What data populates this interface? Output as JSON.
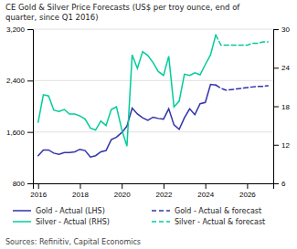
{
  "chart_data": {
    "type": "line",
    "title": "CE Gold & Silver Price Forecasts (US$ per troy ounce, end of\nquarter, since Q1 2016)",
    "annotations": [
      "Sources: Refinitiv, Capital Economics"
    ],
    "series": [
      {
        "name": "Gold - Actual (LHS)",
        "color": "#3333aa",
        "line_style": "solid",
        "axis": "y",
        "x": [
          2016.0,
          2016.25,
          2016.5,
          2016.75,
          2017.0,
          2017.25,
          2017.5,
          2017.75,
          2018.0,
          2018.25,
          2018.5,
          2018.75,
          2019.0,
          2019.25,
          2019.5,
          2019.75,
          2020.0,
          2020.25,
          2020.5,
          2020.75,
          2021.0,
          2021.25,
          2021.5,
          2021.75,
          2022.0,
          2022.25,
          2022.5,
          2022.75,
          2023.0,
          2023.25,
          2023.5,
          2023.75,
          2024.0,
          2024.25,
          2024.5
        ],
        "values": [
          1230,
          1320,
          1320,
          1270,
          1250,
          1280,
          1280,
          1290,
          1330,
          1310,
          1210,
          1230,
          1290,
          1310,
          1480,
          1520,
          1590,
          1690,
          1970,
          1880,
          1820,
          1780,
          1830,
          1810,
          1800,
          1960,
          1710,
          1640,
          1820,
          1960,
          1870,
          2040,
          2060,
          2340,
          2330
        ]
      },
      {
        "name": "Gold - Actual & forecast",
        "color": "#3333aa",
        "line_style": "dashed",
        "axis": "y",
        "x": [
          2024.5,
          2024.75,
          2025.0,
          2025.25,
          2025.5,
          2025.75,
          2026.0,
          2026.25,
          2026.5,
          2026.75,
          2027.0
        ],
        "values": [
          2330,
          2280,
          2250,
          2260,
          2270,
          2280,
          2290,
          2300,
          2310,
          2310,
          2320
        ]
      },
      {
        "name": "Silver - Actual (RHS)",
        "color": "#00cc99",
        "line_style": "solid",
        "axis": "y2",
        "x": [
          2016.0,
          2016.25,
          2016.5,
          2016.75,
          2017.0,
          2017.25,
          2017.5,
          2017.75,
          2018.0,
          2018.25,
          2018.5,
          2018.75,
          2019.0,
          2019.25,
          2019.5,
          2019.75,
          2020.0,
          2020.25,
          2020.5,
          2020.75,
          2021.0,
          2021.25,
          2021.5,
          2021.75,
          2022.0,
          2022.25,
          2022.5,
          2022.75,
          2023.0,
          2023.25,
          2023.5,
          2023.75,
          2024.0,
          2024.25,
          2024.5
        ],
        "values": [
          15.5,
          19.8,
          19.6,
          17.4,
          17.2,
          17.5,
          16.8,
          16.8,
          16.5,
          16.0,
          14.6,
          14.3,
          15.7,
          15.0,
          17.5,
          17.9,
          14.4,
          11.8,
          26.0,
          23.9,
          26.5,
          25.9,
          24.8,
          23.4,
          22.8,
          25.8,
          17.9,
          18.8,
          23.0,
          22.8,
          23.2,
          22.9,
          24.5,
          26.0,
          29.1
        ]
      },
      {
        "name": "Silver - Actual & forecast",
        "color": "#00cc99",
        "line_style": "dashed",
        "axis": "y2",
        "x": [
          2024.5,
          2024.75,
          2025.0,
          2025.25,
          2025.5,
          2025.75,
          2026.0,
          2026.25,
          2026.5,
          2026.75,
          2027.0
        ],
        "values": [
          29.1,
          27.5,
          27.5,
          27.5,
          27.5,
          27.5,
          27.5,
          27.8,
          27.8,
          28.0,
          28.0
        ]
      }
    ],
    "xlim": [
      2015.75,
      2027.25
    ],
    "xticks": [
      2016,
      2018,
      2020,
      2022,
      2024,
      2026
    ],
    "ylim": [
      800,
      3200
    ],
    "yticks": [
      800,
      {
        "value": 1600,
        "label": "1,600"
      },
      {
        "value": 2400,
        "label": "2,400"
      },
      {
        "value": 3200,
        "label": "3,200"
      }
    ],
    "y2lim": [
      6,
      30
    ],
    "y2ticks": [
      6,
      12,
      18,
      24,
      30
    ],
    "grid": true,
    "legend": "bottom"
  }
}
